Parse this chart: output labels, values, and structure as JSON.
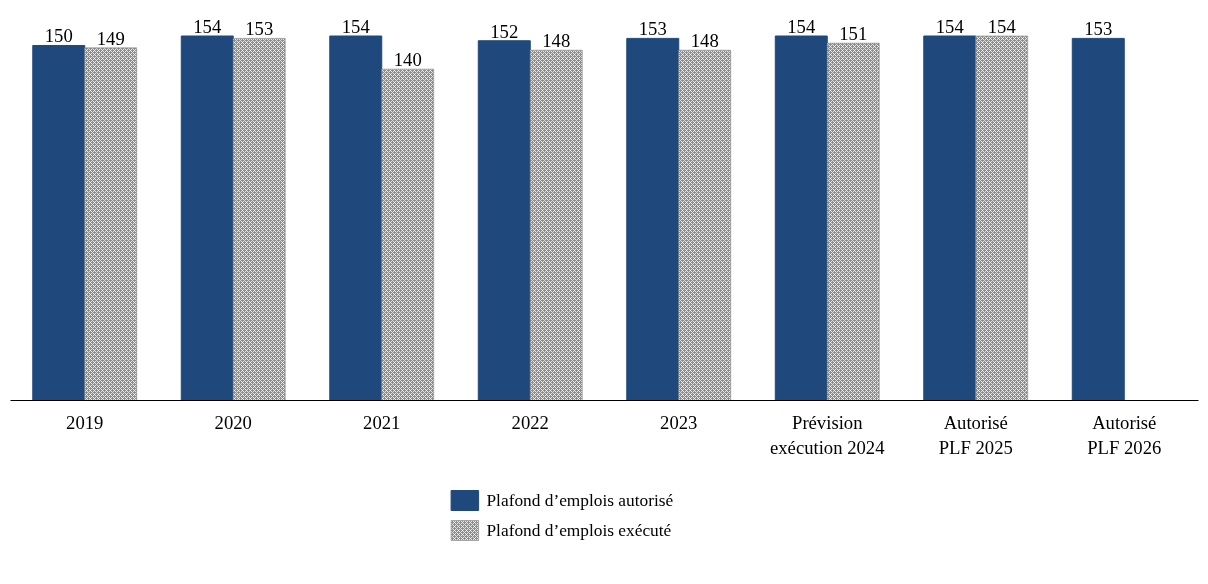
{
  "chart_data": {
    "type": "bar",
    "categories": [
      "2019",
      "2020",
      "2021",
      "2022",
      "2023",
      "Prévision\nexécution 2024",
      "Autorisé\nPLF 2025",
      "Autorisé\nPLF 2026"
    ],
    "series": [
      {
        "name": "Plafond d’emplois autorisé",
        "color": "#1f497d",
        "values": [
          150,
          154,
          154,
          152,
          153,
          154,
          154,
          153
        ]
      },
      {
        "name": "Plafond d’emplois exécuté",
        "color": "#8c8c8c",
        "values": [
          149,
          153,
          140,
          148,
          148,
          151,
          154,
          null
        ]
      }
    ],
    "data_labels": true,
    "legend": "bottom",
    "grid": false,
    "tick_labels": "x"
  }
}
